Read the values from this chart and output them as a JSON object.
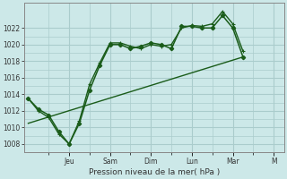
{
  "background_color": "#cce8e8",
  "grid_color": "#aacccc",
  "line_color": "#1a5c1a",
  "xlabel": "Pression niveau de la mer( hPa )",
  "yticks": [
    1008,
    1010,
    1012,
    1014,
    1016,
    1018,
    1020,
    1022
  ],
  "day_labels": [
    "Jeu",
    "Sam",
    "Dim",
    "Lun",
    "Mar",
    "M"
  ],
  "day_positions": [
    2,
    4,
    6,
    8,
    10,
    12
  ],
  "series1_x": [
    0,
    0.5,
    1.0,
    1.5,
    2.0,
    2.5,
    3.0,
    3.5,
    4.0,
    4.5,
    5.0,
    5.5,
    6.0,
    6.5,
    7.0,
    7.5,
    8.0,
    8.5,
    9.0,
    9.5,
    10.0,
    10.5
  ],
  "series1_y": [
    1013.5,
    1012.2,
    1011.5,
    1009.5,
    1008.0,
    1010.5,
    1014.5,
    1017.5,
    1020.0,
    1020.0,
    1019.5,
    1019.8,
    1020.2,
    1020.0,
    1019.5,
    1022.2,
    1022.2,
    1022.0,
    1022.0,
    1023.5,
    1022.0,
    1018.5
  ],
  "series2_x": [
    0,
    0.5,
    1.0,
    1.5,
    2.0,
    2.5,
    3.0,
    3.5,
    4.0,
    4.5,
    5.0,
    5.5,
    6.0,
    6.5,
    7.0,
    7.5,
    8.0,
    8.5,
    9.0,
    9.5,
    10.0,
    10.5
  ],
  "series2_y": [
    1013.5,
    1012.0,
    1011.2,
    1009.2,
    1008.0,
    1010.8,
    1015.2,
    1017.8,
    1020.2,
    1020.2,
    1019.8,
    1019.5,
    1020.0,
    1019.8,
    1020.0,
    1022.0,
    1022.3,
    1022.2,
    1022.5,
    1024.0,
    1022.5,
    1019.2
  ],
  "series3_x": [
    0,
    10.5
  ],
  "series3_y": [
    1010.5,
    1018.5
  ],
  "ylim": [
    1007.0,
    1025.0
  ],
  "xlim": [
    -0.2,
    12.5
  ]
}
